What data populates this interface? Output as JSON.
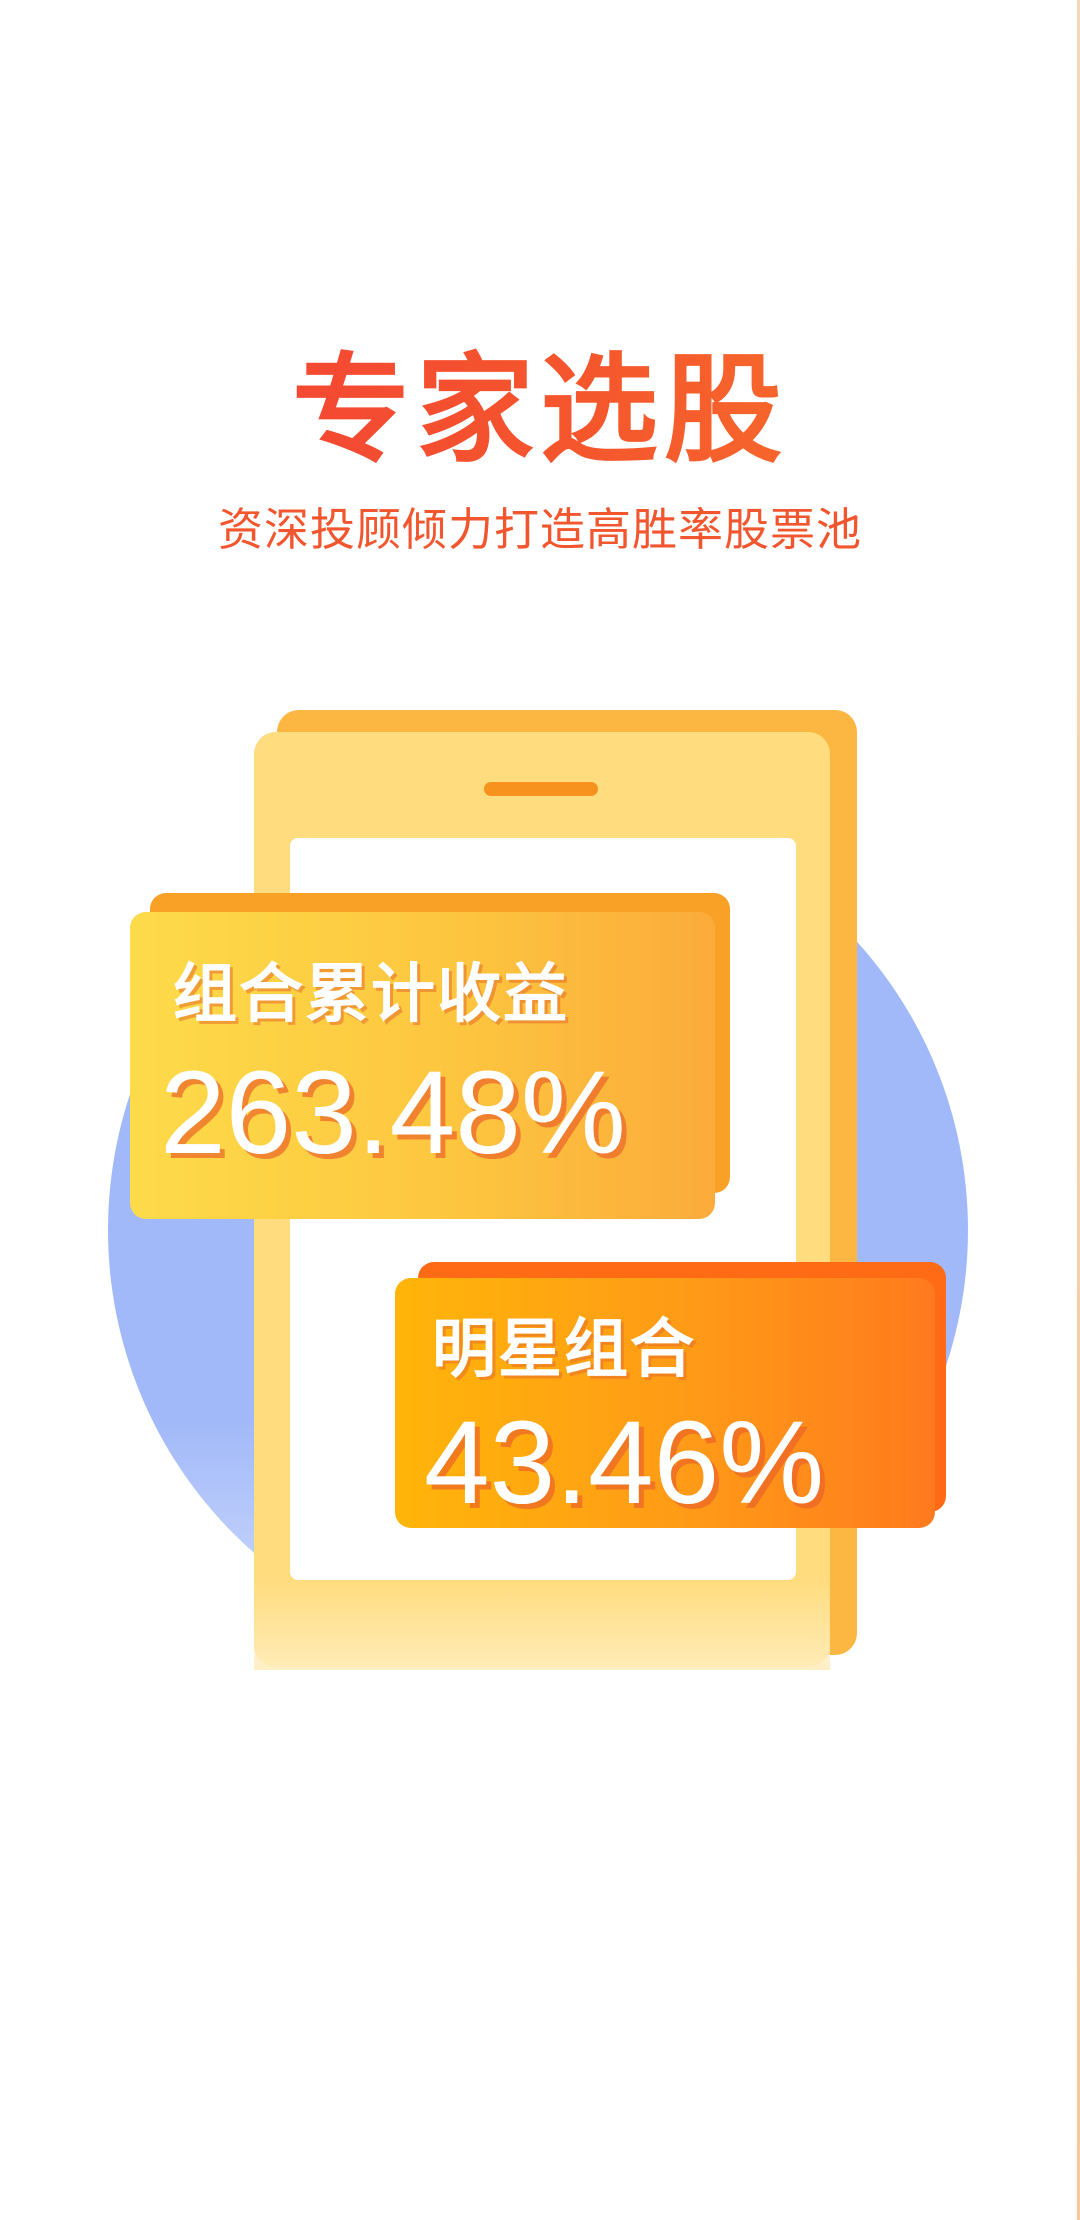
{
  "header": {
    "title": "专家选股",
    "subtitle": "资深投顾倾力打造高胜率股票池"
  },
  "cards": [
    {
      "label": "组合累计收益",
      "value": "263.48%"
    },
    {
      "label": "明星组合",
      "value": "43.46%"
    }
  ],
  "colors": {
    "title_gradient_start": "#f23a3a",
    "title_gradient_end": "#f77b2a",
    "subtitle": "#f2562e",
    "circle": "#a2b9f9",
    "phone_body": "#ffdc7e",
    "phone_back": "#fcb742",
    "card1_gradient": [
      "#fddb4a",
      "#fbab3b"
    ],
    "card2_gradient": [
      "#ffb509",
      "#ff7a1e"
    ]
  },
  "icons": {
    "illustration": "phone-with-stats-illustration"
  }
}
